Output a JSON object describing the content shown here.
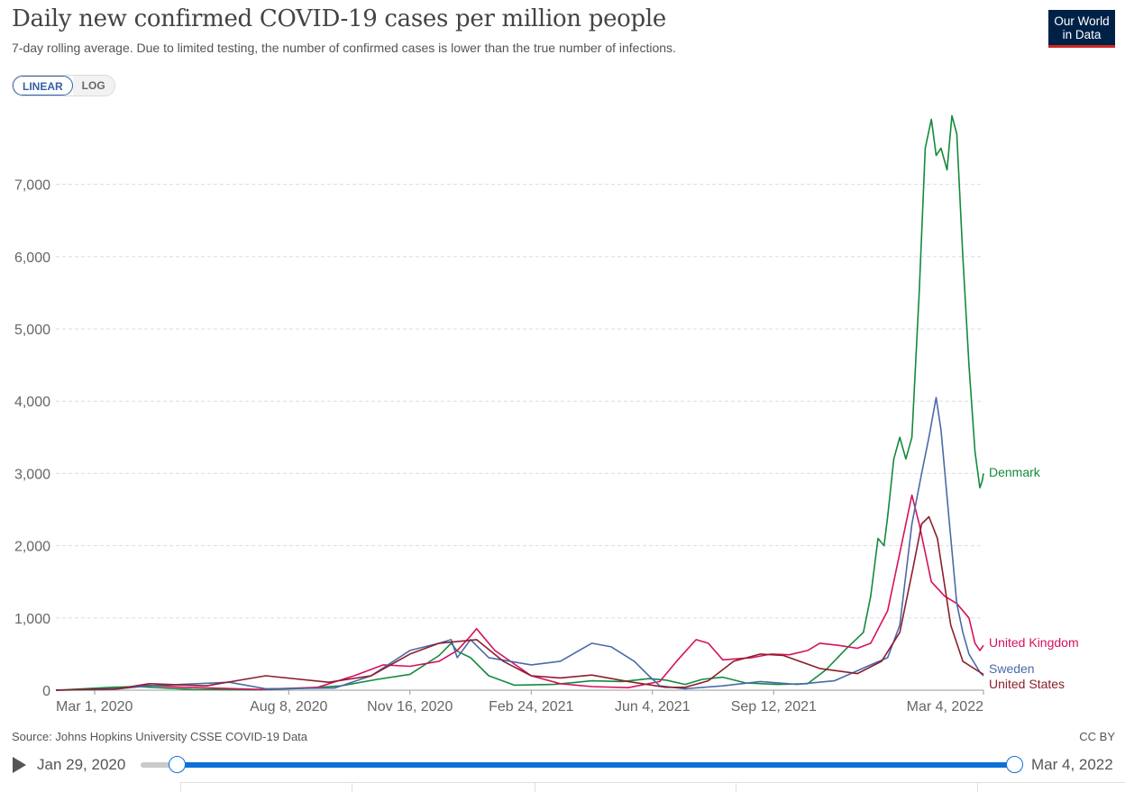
{
  "title": "Daily new confirmed COVID-19 cases per million people",
  "subtitle": "7-day rolling average. Due to limited testing, the number of confirmed cases is lower than the true number of infections.",
  "logo": {
    "line1": "Our World",
    "line2": "in Data"
  },
  "scale_toggle": {
    "linear": "LINEAR",
    "log": "LOG",
    "selected": "LINEAR"
  },
  "source": "Source: Johns Hopkins University CSSE COVID-19 Data",
  "license": "CC BY",
  "timeline": {
    "start": "Jan 29, 2020",
    "end": "Mar 4, 2022",
    "play_icon": "play-icon"
  },
  "colors": {
    "Denmark": "#138a3c",
    "United Kingdom": "#d6115e",
    "Sweden": "#4b6aa8",
    "United States": "#8a1f2e"
  },
  "chart_data": {
    "type": "line",
    "title": "Daily new confirmed COVID-19 cases per million people",
    "xlim": [
      "2020-01-29",
      "2022-03-04"
    ],
    "ylim": [
      0,
      7900
    ],
    "yticks": [
      0,
      1000,
      2000,
      3000,
      4000,
      5000,
      6000,
      7000
    ],
    "ytick_labels": [
      "0",
      "1,000",
      "2,000",
      "3,000",
      "4,000",
      "5,000",
      "6,000",
      "7,000"
    ],
    "xticks": [
      "2020-03-01",
      "2020-08-08",
      "2020-11-16",
      "2021-02-24",
      "2021-06-04",
      "2021-09-12",
      "2022-03-04"
    ],
    "xtick_labels": [
      "Mar 1, 2020",
      "Aug 8, 2020",
      "Nov 16, 2020",
      "Feb 24, 2021",
      "Jun 4, 2021",
      "Sep 12, 2021",
      "Mar 4, 2022"
    ],
    "grid": "horizontal dashed",
    "legend": "end labels",
    "series": [
      {
        "name": "Denmark",
        "x": [
          "2020-01-29",
          "2020-03-15",
          "2020-04-05",
          "2020-05-20",
          "2020-07-15",
          "2020-08-20",
          "2020-09-20",
          "2020-10-20",
          "2020-11-16",
          "2020-12-10",
          "2020-12-20",
          "2020-12-25",
          "2021-01-05",
          "2021-01-20",
          "2021-02-10",
          "2021-03-15",
          "2021-04-15",
          "2021-05-10",
          "2021-06-01",
          "2021-06-15",
          "2021-07-01",
          "2021-07-15",
          "2021-08-01",
          "2021-08-20",
          "2021-09-15",
          "2021-10-10",
          "2021-10-25",
          "2021-11-10",
          "2021-11-25",
          "2021-12-01",
          "2021-12-07",
          "2021-12-12",
          "2021-12-15",
          "2021-12-20",
          "2021-12-25",
          "2021-12-30",
          "2022-01-04",
          "2022-01-10",
          "2022-01-15",
          "2022-01-20",
          "2022-01-24",
          "2022-01-28",
          "2022-02-02",
          "2022-02-06",
          "2022-02-10",
          "2022-02-15",
          "2022-02-20",
          "2022-02-25",
          "2022-03-01",
          "2022-03-03",
          "2022-03-04"
        ],
        "y": [
          0,
          40,
          50,
          10,
          5,
          25,
          60,
          150,
          220,
          480,
          650,
          540,
          450,
          200,
          70,
          80,
          130,
          120,
          160,
          140,
          80,
          150,
          180,
          100,
          80,
          90,
          280,
          560,
          800,
          1300,
          2100,
          2000,
          2400,
          3200,
          3500,
          3200,
          3500,
          5500,
          7500,
          7900,
          7400,
          7500,
          7200,
          7950,
          7700,
          6000,
          4500,
          3300,
          2800,
          2900,
          3000
        ]
      },
      {
        "name": "United Kingdom",
        "x": [
          "2020-01-29",
          "2020-03-15",
          "2020-04-10",
          "2020-05-15",
          "2020-07-15",
          "2020-09-01",
          "2020-10-01",
          "2020-10-25",
          "2020-11-16",
          "2020-12-10",
          "2020-12-25",
          "2021-01-05",
          "2021-01-10",
          "2021-01-25",
          "2021-02-24",
          "2021-03-20",
          "2021-04-15",
          "2021-05-15",
          "2021-06-10",
          "2021-06-25",
          "2021-07-10",
          "2021-07-20",
          "2021-08-01",
          "2021-08-25",
          "2021-09-10",
          "2021-09-25",
          "2021-10-10",
          "2021-10-20",
          "2021-11-05",
          "2021-11-20",
          "2021-12-01",
          "2021-12-15",
          "2021-12-25",
          "2022-01-04",
          "2022-01-10",
          "2022-01-20",
          "2022-01-31",
          "2022-02-10",
          "2022-02-20",
          "2022-02-25",
          "2022-03-01",
          "2022-03-04"
        ],
        "y": [
          0,
          10,
          70,
          40,
          10,
          40,
          200,
          350,
          330,
          400,
          550,
          750,
          850,
          550,
          200,
          90,
          50,
          35,
          120,
          420,
          700,
          650,
          420,
          450,
          500,
          490,
          550,
          650,
          620,
          580,
          650,
          1100,
          1900,
          2700,
          2300,
          1500,
          1300,
          1200,
          1000,
          650,
          550,
          620
        ]
      },
      {
        "name": "Sweden",
        "x": [
          "2020-01-29",
          "2020-03-15",
          "2020-04-15",
          "2020-06-20",
          "2020-07-20",
          "2020-09-15",
          "2020-10-15",
          "2020-11-16",
          "2020-12-10",
          "2020-12-20",
          "2020-12-25",
          "2021-01-05",
          "2021-01-20",
          "2021-02-24",
          "2021-03-20",
          "2021-04-15",
          "2021-05-01",
          "2021-05-20",
          "2021-06-01",
          "2021-06-10",
          "2021-07-01",
          "2021-08-01",
          "2021-09-01",
          "2021-10-01",
          "2021-11-01",
          "2021-12-01",
          "2021-12-15",
          "2021-12-25",
          "2022-01-04",
          "2022-01-12",
          "2022-01-18",
          "2022-01-24",
          "2022-01-28",
          "2022-02-04",
          "2022-02-10",
          "2022-02-15",
          "2022-02-20",
          "2022-03-01",
          "2022-03-04"
        ],
        "y": [
          0,
          10,
          60,
          110,
          20,
          30,
          200,
          550,
          650,
          700,
          450,
          700,
          450,
          350,
          400,
          650,
          600,
          400,
          200,
          60,
          20,
          60,
          120,
          80,
          130,
          350,
          450,
          900,
          2300,
          3000,
          3500,
          4050,
          3600,
          2300,
          1200,
          800,
          500,
          250,
          200
        ]
      },
      {
        "name": "United States",
        "x": [
          "2020-01-29",
          "2020-03-20",
          "2020-04-15",
          "2020-06-01",
          "2020-07-20",
          "2020-09-10",
          "2020-10-15",
          "2020-11-16",
          "2020-12-10",
          "2021-01-10",
          "2021-02-01",
          "2021-02-24",
          "2021-03-20",
          "2021-04-15",
          "2021-05-15",
          "2021-06-15",
          "2021-07-01",
          "2021-07-20",
          "2021-08-10",
          "2021-09-01",
          "2021-09-20",
          "2021-10-20",
          "2021-11-20",
          "2021-12-10",
          "2021-12-25",
          "2022-01-05",
          "2022-01-12",
          "2022-01-18",
          "2022-01-25",
          "2022-02-05",
          "2022-02-15",
          "2022-03-01",
          "2022-03-04"
        ],
        "y": [
          0,
          20,
          90,
          60,
          200,
          110,
          200,
          500,
          650,
          700,
          400,
          200,
          170,
          210,
          120,
          40,
          40,
          130,
          400,
          500,
          480,
          300,
          230,
          400,
          800,
          1700,
          2300,
          2400,
          2100,
          900,
          400,
          250,
          220
        ]
      }
    ]
  }
}
